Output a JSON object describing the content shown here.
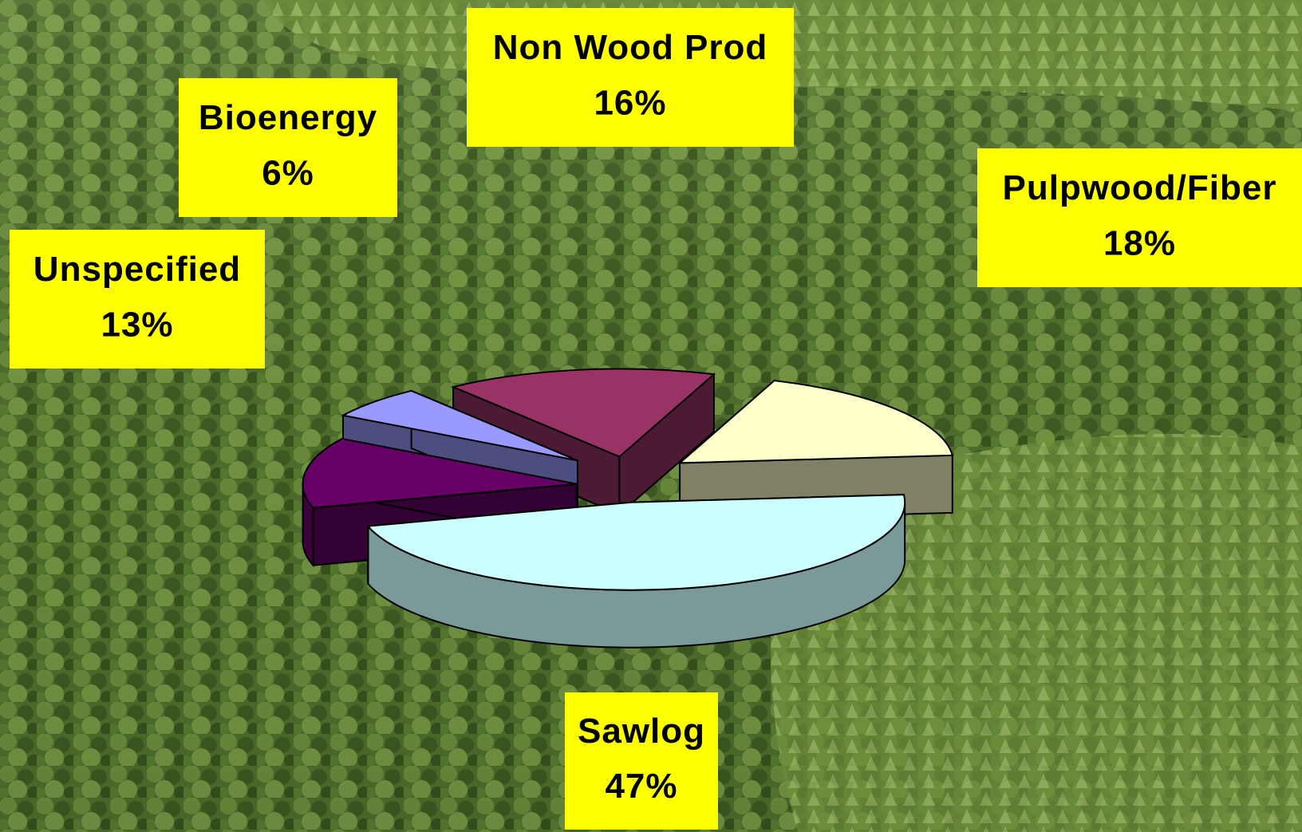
{
  "chart_data": {
    "type": "pie",
    "categories": [
      "Sawlog",
      "Unspecified",
      "Bioenergy",
      "Non Wood Prod",
      "Pulpwood/Fiber"
    ],
    "values": [
      47,
      13,
      6,
      16,
      18
    ],
    "value_labels": [
      "47%",
      "13%",
      "6%",
      "16%",
      "18%"
    ],
    "colors": [
      "#ccffff",
      "#660066",
      "#9999ff",
      "#993366",
      "#ffffcc"
    ]
  }
}
